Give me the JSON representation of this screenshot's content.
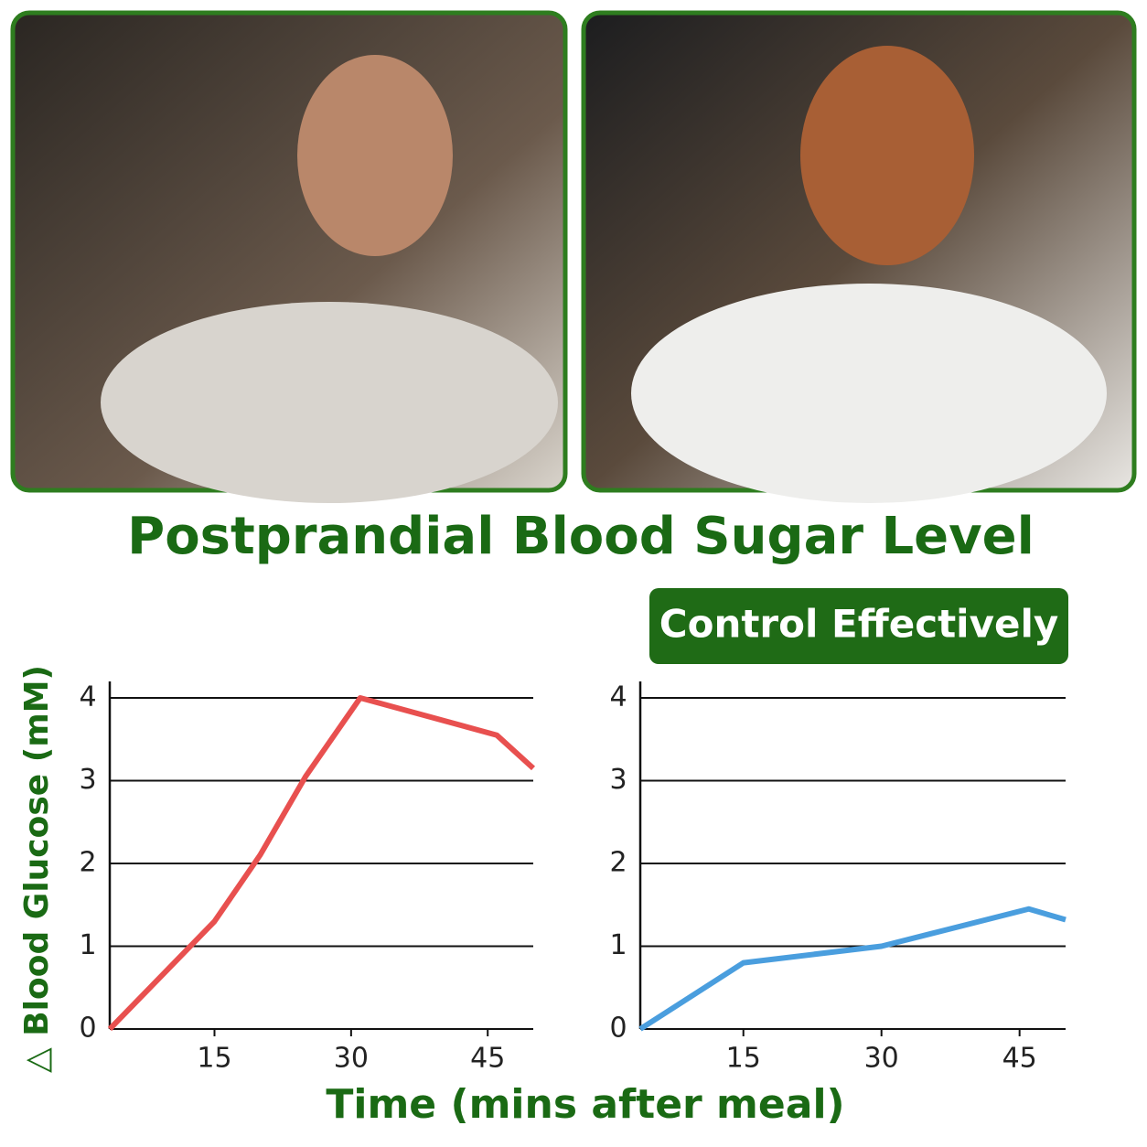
{
  "title": "Postprandial Blood Sugar Level",
  "badge": "Control Effectively",
  "y_axis_label": "△ Blood Glucose (mM)",
  "x_axis_label": "Time (mins after meal)",
  "chart_data": [
    {
      "type": "line",
      "x": [
        3.5,
        15,
        20,
        25,
        31,
        46,
        50
      ],
      "series": [
        {
          "color": "#e8504f",
          "values": [
            0,
            1.3,
            2.1,
            3.05,
            4,
            3.55,
            3.15
          ]
        }
      ],
      "xlim": [
        3.5,
        50
      ],
      "xticks": [
        15,
        30,
        45
      ],
      "ylim": [
        0,
        4
      ],
      "yticks": [
        0,
        1,
        2,
        3,
        4
      ],
      "grid": true
    },
    {
      "type": "line",
      "x": [
        3.8,
        15,
        30,
        46,
        50
      ],
      "series": [
        {
          "color": "#4a9ede",
          "values": [
            0,
            0.8,
            1.0,
            1.45,
            1.32
          ]
        }
      ],
      "xlim": [
        3.8,
        50
      ],
      "xticks": [
        15,
        30,
        45
      ],
      "ylim": [
        0,
        4
      ],
      "yticks": [
        0,
        1,
        2,
        3,
        4
      ],
      "grid": true
    }
  ]
}
